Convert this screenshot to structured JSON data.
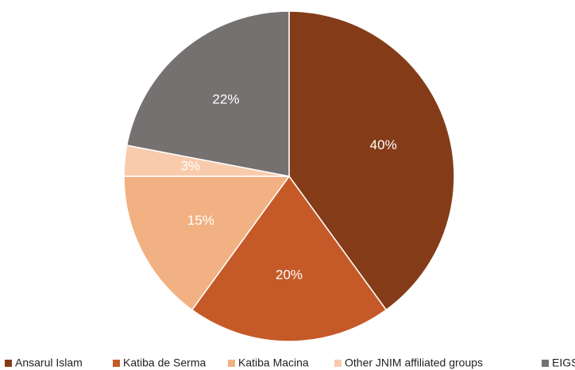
{
  "chart_data": {
    "type": "pie",
    "categories": [
      "Ansarul Islam",
      "Katiba de Serma",
      "Katiba Macina",
      "Other JNIM affiliated groups",
      "EIGS"
    ],
    "values": [
      40,
      20,
      15,
      3,
      22
    ],
    "value_labels": [
      "40%",
      "20%",
      "15%",
      "3%",
      "22%"
    ],
    "colors": [
      "#843c18",
      "#c55a28",
      "#f2b183",
      "#f8cbad",
      "#767171"
    ],
    "legend": "bottom"
  }
}
